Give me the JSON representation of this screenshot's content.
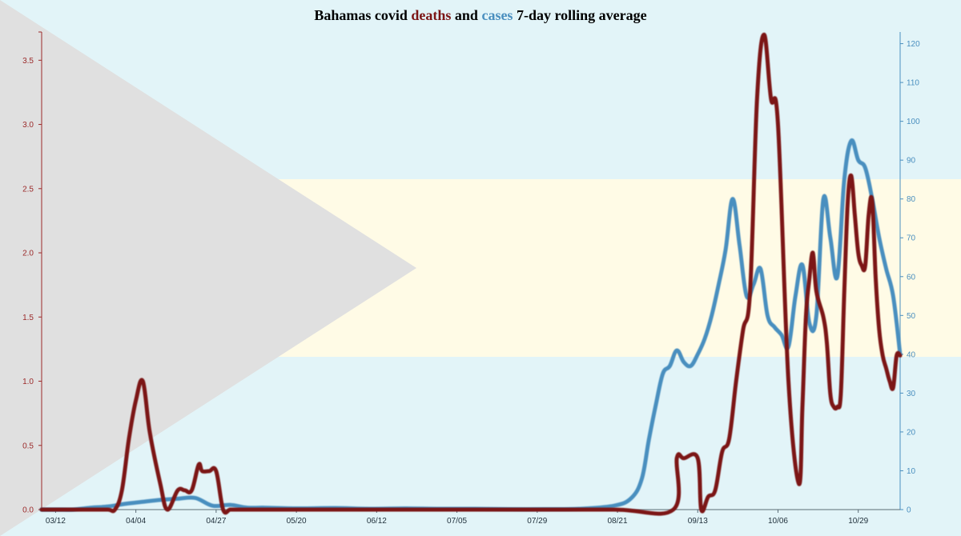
{
  "title": {
    "part1": "Bahamas covid ",
    "part2": "deaths",
    "part3": " and ",
    "part4": "cases",
    "part5": " 7-day rolling average"
  },
  "colors": {
    "deaths": "#7b1515",
    "cases": "#4a8fbf",
    "flag_aqua": "#e2f4f8",
    "flag_gold": "#fffbe6",
    "flag_triangle": "#e0e0e0",
    "left_axis": "#9b2a2a",
    "right_axis": "#4a8fbf"
  },
  "chart_data": {
    "type": "line",
    "title": "Bahamas covid deaths and cases 7-day rolling average",
    "x_tick_labels": [
      "03/12",
      "04/04",
      "04/27",
      "05/20",
      "06/12",
      "07/05",
      "07/29",
      "08/21",
      "09/13",
      "10/06",
      "10/29"
    ],
    "x_day_range": [
      -4,
      242
    ],
    "left_axis": {
      "label": "",
      "range": [
        0,
        3.72
      ],
      "ticks": [
        "0.0",
        "0.5",
        "1.0",
        "1.5",
        "2.0",
        "2.5",
        "3.0",
        "3.5"
      ],
      "tick_values": [
        0,
        0.5,
        1,
        1.5,
        2,
        2.5,
        3,
        3.5
      ]
    },
    "right_axis": {
      "label": "",
      "range": [
        0,
        123
      ],
      "ticks": [
        "0",
        "10",
        "20",
        "30",
        "40",
        "50",
        "60",
        "70",
        "80",
        "90",
        "100",
        "110",
        "120"
      ],
      "tick_values": [
        0,
        10,
        20,
        30,
        40,
        50,
        60,
        70,
        80,
        90,
        100,
        110,
        120
      ]
    },
    "series": [
      {
        "name": "deaths",
        "axis": "left",
        "x": [
          -4,
          10,
          15,
          17,
          19,
          21,
          23,
          25,
          27,
          30,
          32,
          35,
          37,
          39,
          41,
          42,
          44,
          46,
          48,
          50,
          52,
          55,
          56,
          58,
          60,
          63,
          70,
          100,
          130,
          160,
          177,
          178,
          180,
          184,
          185,
          187,
          189,
          191,
          193,
          195,
          197,
          199,
          201,
          203,
          205,
          207,
          210,
          213,
          214,
          215,
          216,
          217,
          218,
          220,
          221,
          222,
          223,
          224,
          225,
          226,
          227,
          228,
          229,
          230,
          231,
          232,
          233,
          234,
          235,
          236,
          237,
          238,
          239,
          240,
          241,
          242
        ],
        "y": [
          0,
          0,
          0,
          0,
          0.15,
          0.55,
          0.85,
          1.0,
          0.6,
          0.2,
          0.0,
          0.15,
          0.15,
          0.15,
          0.35,
          0.3,
          0.3,
          0.3,
          0.0,
          0.0,
          0.0,
          0.0,
          0.0,
          0.0,
          0.0,
          0.0,
          0.0,
          0.0,
          0.0,
          0.0,
          0.0,
          0.4,
          0.4,
          0.4,
          0.0,
          0.1,
          0.15,
          0.45,
          0.55,
          1.0,
          1.4,
          1.7,
          3.2,
          3.7,
          3.2,
          3.0,
          1.0,
          0.2,
          0.8,
          1.5,
          1.8,
          2.0,
          1.7,
          1.5,
          1.3,
          0.9,
          0.8,
          0.8,
          0.9,
          1.7,
          2.4,
          2.6,
          2.3,
          2.0,
          1.9,
          1.9,
          2.3,
          2.4,
          1.8,
          1.4,
          1.2,
          1.1,
          1.0,
          0.95,
          1.2,
          1.2
        ]
      },
      {
        "name": "cases",
        "axis": "right",
        "x": [
          -4,
          2,
          5,
          10,
          15,
          20,
          25,
          30,
          35,
          40,
          45,
          50,
          55,
          60,
          70,
          80,
          90,
          100,
          110,
          120,
          130,
          140,
          150,
          160,
          165,
          168,
          170,
          172,
          174,
          176,
          178,
          180,
          182,
          184,
          186,
          188,
          190,
          192,
          194,
          196,
          198,
          200,
          202,
          204,
          206,
          208,
          210,
          212,
          214,
          216,
          218,
          220,
          222,
          224,
          226,
          228,
          230,
          232,
          234,
          236,
          238,
          240,
          242
        ],
        "y": [
          0,
          0,
          0,
          0.5,
          0.8,
          1.5,
          2.0,
          2.5,
          2.8,
          3.0,
          1.0,
          1.2,
          0.5,
          0.5,
          0.3,
          0.4,
          0.2,
          0.3,
          0.2,
          0.2,
          0.1,
          0.1,
          0.2,
          1.0,
          3.0,
          8.0,
          18.0,
          27.0,
          35.0,
          37.0,
          41.0,
          38.0,
          37.0,
          40.0,
          44.0,
          50.0,
          58.0,
          67.0,
          80.0,
          68.0,
          55.0,
          58.0,
          62.0,
          50.0,
          47.0,
          45.0,
          42.0,
          55.0,
          63.0,
          48.0,
          50.0,
          80.0,
          70.0,
          60.0,
          85.0,
          95.0,
          90.0,
          88.0,
          80.0,
          70.0,
          62.0,
          55.0,
          40.0
        ]
      }
    ]
  }
}
